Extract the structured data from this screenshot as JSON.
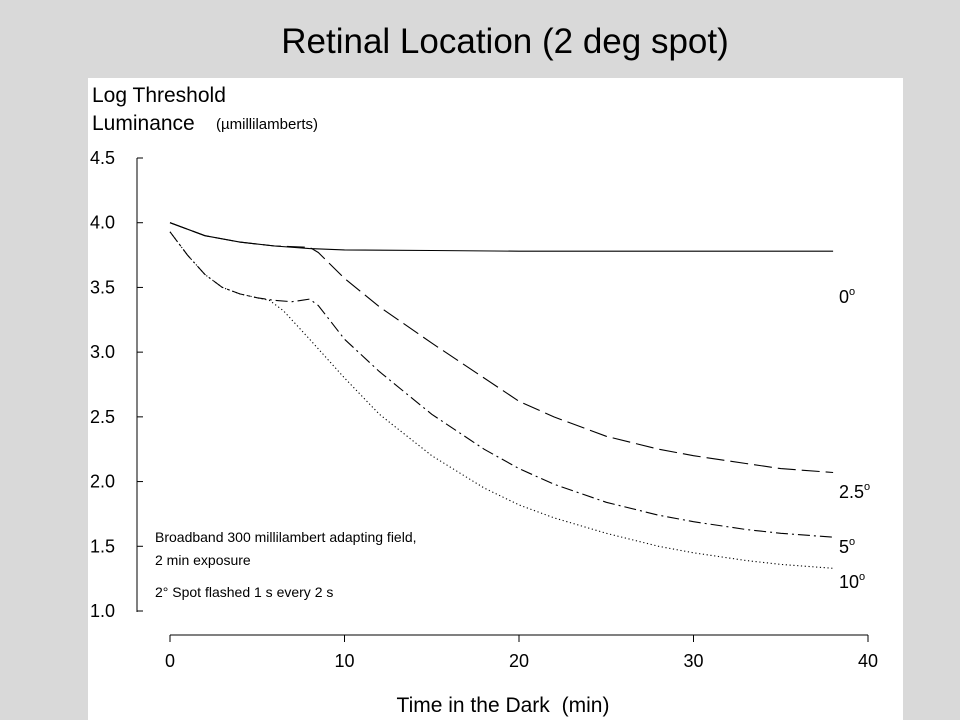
{
  "chart_data": {
    "type": "line",
    "title": "Retinal Location (2 deg spot)",
    "ylabel_line1": "Log Threshold",
    "ylabel_line2": "Luminance",
    "yunit": "(µmillilamberts)",
    "xlabel": "Time in the Dark",
    "xunit": "(min)",
    "xlim": [
      0,
      40
    ],
    "ylim": [
      1.0,
      4.5
    ],
    "xticks": [
      "0",
      "10",
      "20",
      "30",
      "40"
    ],
    "yticks": [
      "4.5",
      "4.0",
      "3.5",
      "3.0",
      "2.5",
      "2.0",
      "1.5",
      "1.0"
    ],
    "grid": false,
    "annotations": [
      "Broadband 300 millilambert adapting field,",
      "2 min exposure",
      "2° Spot flashed 1 s every 2 s"
    ],
    "series": [
      {
        "name": "0",
        "sup": "o",
        "style": "solid",
        "x": [
          0,
          2,
          4,
          6,
          8,
          10,
          15,
          20,
          25,
          30,
          35,
          38
        ],
        "y": [
          4.0,
          3.9,
          3.85,
          3.82,
          3.8,
          3.79,
          3.785,
          3.78,
          3.78,
          3.78,
          3.78,
          3.78
        ]
      },
      {
        "name": "2.5",
        "sup": "o",
        "style": "dash",
        "x": [
          0,
          2,
          4,
          6,
          8,
          8.5,
          10,
          12,
          15,
          18,
          20,
          22,
          25,
          28,
          30,
          33,
          35,
          38
        ],
        "y": [
          4.0,
          3.9,
          3.85,
          3.82,
          3.81,
          3.77,
          3.57,
          3.35,
          3.07,
          2.8,
          2.62,
          2.5,
          2.35,
          2.25,
          2.2,
          2.14,
          2.1,
          2.07
        ]
      },
      {
        "name": "5",
        "sup": "o",
        "style": "dashdot",
        "x": [
          0,
          1,
          2,
          3,
          4,
          5,
          6,
          7,
          7.5,
          8,
          8.5,
          10,
          12,
          15,
          18,
          20,
          22,
          25,
          28,
          30,
          33,
          35,
          38
        ],
        "y": [
          3.93,
          3.75,
          3.6,
          3.5,
          3.45,
          3.42,
          3.4,
          3.39,
          3.4,
          3.41,
          3.36,
          3.1,
          2.85,
          2.52,
          2.25,
          2.1,
          1.98,
          1.84,
          1.74,
          1.69,
          1.63,
          1.6,
          1.57
        ]
      },
      {
        "name": "10",
        "sup": "o",
        "style": "dotted",
        "x": [
          0,
          1,
          2,
          3,
          4,
          5,
          5.7,
          6.5,
          8,
          10,
          12,
          15,
          18,
          20,
          22,
          25,
          28,
          30,
          33,
          35,
          38
        ],
        "y": [
          3.93,
          3.75,
          3.6,
          3.5,
          3.45,
          3.42,
          3.4,
          3.32,
          3.1,
          2.8,
          2.52,
          2.2,
          1.95,
          1.82,
          1.72,
          1.6,
          1.5,
          1.45,
          1.39,
          1.36,
          1.33
        ]
      }
    ]
  }
}
